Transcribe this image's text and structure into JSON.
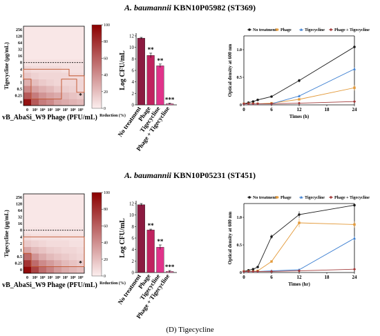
{
  "panel_label": "(D) Tigecycline",
  "rows": [
    {
      "title_italic": "A. baumannii",
      "title_rest": " KBN10P05982 (ST369)",
      "chart_data": [
        {
          "type": "heatmap",
          "xlabel": "vB_AbaSi_W9 Phage (PFU/mL)",
          "ylabel": "Tigecycline (μg/mL)",
          "x_ticks": [
            "0",
            "10³",
            "10⁴",
            "10⁵",
            "10⁶",
            "10⁷",
            "10⁸",
            "10⁹"
          ],
          "y_ticks": [
            "0",
            "0.25",
            "0.5",
            "1",
            "2",
            "4",
            "8",
            "16",
            "32",
            "64",
            "128",
            "256"
          ],
          "colorbar_label": "Reduction (%)",
          "colorbar_ticks": [
            "0",
            "20",
            "40",
            "60",
            "80",
            "100"
          ],
          "values": [
            [
              92,
              62,
              48,
              42,
              32,
              28,
              25,
              22
            ],
            [
              62,
              48,
              38,
              32,
              28,
              22,
              18,
              15
            ],
            [
              42,
              32,
              26,
              22,
              16,
              14,
              12,
              10
            ],
            [
              26,
              20,
              15,
              12,
              10,
              10,
              10,
              10
            ],
            [
              16,
              12,
              10,
              10,
              10,
              10,
              8,
              8
            ],
            [
              10,
              8,
              8,
              8,
              8,
              6,
              6,
              6
            ],
            [
              5,
              5,
              5,
              5,
              5,
              5,
              5,
              5
            ],
            [
              3,
              3,
              3,
              3,
              3,
              3,
              3,
              3
            ],
            [
              3,
              3,
              3,
              3,
              3,
              3,
              3,
              3
            ],
            [
              3,
              3,
              3,
              3,
              3,
              3,
              3,
              3
            ],
            [
              3,
              3,
              3,
              3,
              3,
              3,
              3,
              3
            ],
            [
              3,
              3,
              3,
              3,
              3,
              3,
              3,
              3
            ]
          ],
          "mic_line_y": "8",
          "star": "*",
          "star_cell": [
            1,
            7
          ]
        },
        {
          "type": "bar",
          "ylabel": "Log CFU/mL",
          "categories": [
            "No treatment",
            "Phage",
            "Tigecycline",
            "Phage + Tigecycline"
          ],
          "values": [
            11.6,
            8.6,
            6.8,
            0.2
          ],
          "errors": [
            0.15,
            0.4,
            0.3,
            0.1
          ],
          "significance": [
            "",
            "**",
            "**",
            "***"
          ],
          "colors": [
            "#8b1a40",
            "#c0225f",
            "#e0338a",
            "#f07ab0"
          ],
          "ylim": [
            0,
            12
          ],
          "yticks": [
            0,
            2,
            4,
            6,
            8,
            10,
            12
          ]
        },
        {
          "type": "line",
          "xlabel": "Times (h)",
          "ylabel": "Optical density at 600 nm",
          "x": [
            0,
            1,
            2,
            3,
            6,
            12,
            24
          ],
          "xticks": [
            0,
            6,
            12,
            18,
            24
          ],
          "ylim": [
            0,
            1.25
          ],
          "yticks": [
            0,
            0.5,
            1.0
          ],
          "ytick_labels": [
            "0",
            "0.5",
            "1.0"
          ],
          "legend_position": "top",
          "series": [
            {
              "name": "No treatment",
              "color": "#1a1a1a",
              "marker": "circle",
              "values": [
                0.02,
                0.04,
                0.06,
                0.09,
                0.15,
                0.44,
                1.05
              ],
              "errors": [
                0,
                0,
                0,
                0,
                0,
                0.03,
                0.02
              ]
            },
            {
              "name": "Phage",
              "color": "#e39a3a",
              "marker": "square",
              "values": [
                0.02,
                0.02,
                0.02,
                0.02,
                0.03,
                0.1,
                0.31
              ],
              "errors": [
                0,
                0,
                0,
                0,
                0,
                0,
                0.05
              ]
            },
            {
              "name": "Tigecycline",
              "color": "#3b7ed1",
              "marker": "triangle",
              "values": [
                0.02,
                0.02,
                0.02,
                0.02,
                0.02,
                0.16,
                0.65
              ],
              "errors": [
                0,
                0,
                0,
                0,
                0,
                0,
                0.03
              ]
            },
            {
              "name": "Phage + Tigecycline",
              "color": "#a23a3a",
              "marker": "diamond",
              "values": [
                0.02,
                0.02,
                0.02,
                0.02,
                0.02,
                0.03,
                0.06
              ],
              "errors": [
                0,
                0,
                0,
                0,
                0,
                0,
                0
              ]
            }
          ]
        }
      ]
    },
    {
      "title_italic": "A. baumannii",
      "title_rest": " KBN10P05231 (ST451)",
      "chart_data": [
        {
          "type": "heatmap",
          "xlabel": "vB_AbaSi_W9 Phage (PFU/mL)",
          "ylabel": "Tigecycline (μg/mL)",
          "x_ticks": [
            "0",
            "10³",
            "10⁴",
            "10⁵",
            "10⁶",
            "10⁷",
            "10⁸",
            "10⁹"
          ],
          "y_ticks": [
            "0",
            "0.25",
            "0.5",
            "1",
            "2",
            "4",
            "8",
            "16",
            "32",
            "64",
            "128",
            "256"
          ],
          "colorbar_label": "Reduction (%)",
          "colorbar_ticks": [
            "0",
            "20",
            "40",
            "60",
            "80",
            "100"
          ],
          "values": [
            [
              96,
              72,
              55,
              45,
              35,
              28,
              24,
              20
            ],
            [
              78,
              55,
              42,
              35,
              28,
              22,
              18,
              15
            ],
            [
              55,
              38,
              28,
              22,
              18,
              15,
              12,
              10
            ],
            [
              30,
              22,
              18,
              14,
              12,
              10,
              10,
              8
            ],
            [
              15,
              12,
              10,
              8,
              8,
              8,
              6,
              6
            ],
            [
              8,
              6,
              6,
              6,
              6,
              5,
              5,
              5
            ],
            [
              4,
              4,
              4,
              4,
              4,
              4,
              4,
              4
            ],
            [
              3,
              3,
              3,
              3,
              3,
              3,
              3,
              3
            ],
            [
              3,
              3,
              3,
              3,
              3,
              3,
              3,
              3
            ],
            [
              3,
              3,
              3,
              3,
              3,
              3,
              3,
              3
            ],
            [
              3,
              3,
              3,
              3,
              3,
              3,
              3,
              3
            ],
            [
              3,
              3,
              3,
              3,
              3,
              3,
              3,
              3
            ]
          ],
          "mic_line_y": "8",
          "star": "*",
          "star_cell": [
            1,
            7
          ]
        },
        {
          "type": "bar",
          "ylabel": "Log CFU/mL",
          "categories": [
            "No treatment",
            "Phage",
            "Tigecycline",
            "Phage + Tigecycline"
          ],
          "values": [
            11.8,
            7.4,
            4.4,
            0.2
          ],
          "errors": [
            0.2,
            0.15,
            0.4,
            0.15
          ],
          "significance": [
            "",
            "**",
            "**",
            "***"
          ],
          "colors": [
            "#8b1a40",
            "#c0225f",
            "#e0338a",
            "#f07ab0"
          ],
          "ylim": [
            0,
            12
          ],
          "yticks": [
            0,
            2,
            4,
            6,
            8,
            10,
            12
          ]
        },
        {
          "type": "line",
          "xlabel": "Times (hr)",
          "ylabel": "Optical density at 600 nm",
          "x": [
            0,
            1,
            2,
            3,
            6,
            12,
            24
          ],
          "xticks": [
            0,
            6,
            12,
            18,
            24
          ],
          "ylim": [
            0,
            1.25
          ],
          "yticks": [
            0,
            0.5,
            1.0
          ],
          "ytick_labels": [
            "0",
            "0.5",
            "1.0"
          ],
          "legend_position": "top",
          "series": [
            {
              "name": "No treatment",
              "color": "#1a1a1a",
              "marker": "circle",
              "values": [
                0.02,
                0.04,
                0.06,
                0.1,
                0.65,
                1.05,
                1.22
              ],
              "errors": [
                0,
                0,
                0,
                0,
                0.04,
                0.06,
                0.03
              ]
            },
            {
              "name": "Phage",
              "color": "#e39a3a",
              "marker": "square",
              "values": [
                0.02,
                0.02,
                0.02,
                0.03,
                0.2,
                0.9,
                0.87
              ],
              "errors": [
                0,
                0,
                0,
                0,
                0,
                0.08,
                0.06
              ]
            },
            {
              "name": "Tigecycline",
              "color": "#3b7ed1",
              "marker": "triangle",
              "values": [
                0.02,
                0.02,
                0.02,
                0.02,
                0.03,
                0.05,
                0.62
              ],
              "errors": [
                0,
                0,
                0,
                0,
                0,
                0,
                0.04
              ]
            },
            {
              "name": "Phage + Tigecycline",
              "color": "#a23a3a",
              "marker": "diamond",
              "values": [
                0.02,
                0.02,
                0.02,
                0.02,
                0.02,
                0.03,
                0.06
              ],
              "errors": [
                0,
                0,
                0,
                0,
                0,
                0,
                0
              ]
            }
          ]
        }
      ]
    }
  ]
}
